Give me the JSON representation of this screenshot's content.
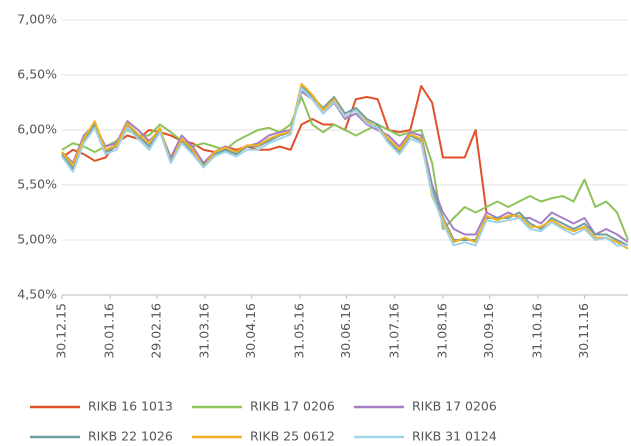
{
  "chart_data": {
    "type": "line",
    "x": [
      "30.12.15",
      "06.01.16",
      "13.01.16",
      "20.01.16",
      "27.01.16",
      "03.02.16",
      "10.02.16",
      "17.02.16",
      "24.02.16",
      "02.03.16",
      "09.03.16",
      "16.03.16",
      "23.03.16",
      "30.03.16",
      "06.04.16",
      "13.04.16",
      "20.04.16",
      "27.04.16",
      "04.05.16",
      "11.05.16",
      "18.05.16",
      "25.05.16",
      "01.06.16",
      "08.06.16",
      "15.06.16",
      "22.06.16",
      "29.06.16",
      "06.07.16",
      "13.07.16",
      "20.07.16",
      "27.07.16",
      "03.08.16",
      "10.08.16",
      "17.08.16",
      "24.08.16",
      "31.08.16",
      "07.09.16",
      "14.09.16",
      "21.09.16",
      "28.09.16",
      "05.10.16",
      "12.10.16",
      "19.10.16",
      "26.10.16",
      "02.11.16",
      "09.11.16",
      "16.11.16",
      "23.11.16",
      "30.11.16",
      "07.12.16",
      "14.12.16",
      "21.12.16",
      "28.12.16"
    ],
    "xlim": [
      "30.12.15",
      "28.12.16"
    ],
    "xticks": [
      "30.12.15",
      "30.01.16",
      "29.02.16",
      "31.03.16",
      "30.04.16",
      "31.05.16",
      "30.06.16",
      "31.07.16",
      "31.08.16",
      "30.09.16",
      "31.10.16",
      "30.11.16"
    ],
    "ylim": [
      4.5,
      7
    ],
    "yticks": [
      {
        "value": 4.5,
        "label": "4,50%"
      },
      {
        "value": 5,
        "label": "5,00%"
      },
      {
        "value": 5.5,
        "label": "5,50%"
      },
      {
        "value": 6,
        "label": "6,00%"
      },
      {
        "value": 6.5,
        "label": "6,50%"
      },
      {
        "value": 7,
        "label": "7,00%"
      }
    ],
    "grid": true,
    "series": [
      {
        "name": "RIKB 16 1013",
        "color": "#e0502a",
        "values": [
          5.75,
          5.82,
          5.78,
          5.72,
          5.75,
          5.88,
          5.95,
          5.92,
          6.0,
          5.98,
          5.95,
          5.9,
          5.88,
          5.82,
          5.8,
          5.85,
          5.82,
          5.85,
          5.82,
          5.82,
          5.85,
          5.82,
          6.05,
          6.1,
          6.05,
          6.05,
          6.0,
          6.28,
          6.3,
          6.28,
          6.0,
          5.98,
          6.0,
          6.4,
          6.25,
          5.75,
          5.75,
          5.75,
          6.0,
          5.25,
          null,
          null,
          null,
          null,
          null,
          null,
          null,
          null,
          null,
          null,
          null,
          null,
          null
        ]
      },
      {
        "name": "RIKB 17 0206",
        "color": "#8dc35a",
        "values": [
          5.82,
          5.88,
          5.85,
          5.8,
          5.85,
          5.9,
          6.0,
          5.95,
          5.95,
          6.05,
          5.98,
          5.9,
          5.85,
          5.88,
          5.85,
          5.82,
          5.9,
          5.95,
          6.0,
          6.02,
          5.98,
          6.05,
          6.3,
          6.05,
          5.98,
          6.05,
          6.0,
          5.95,
          6.0,
          6.05,
          6.0,
          5.95,
          5.98,
          6.0,
          5.7,
          5.1,
          5.2,
          5.3,
          5.25,
          5.3,
          5.35,
          5.3,
          5.35,
          5.4,
          5.35,
          5.38,
          5.4,
          5.35,
          5.55,
          5.3,
          5.35,
          5.25,
          5.0
        ]
      },
      {
        "name": "RIKB 17 0206",
        "color": "#a77fc6",
        "values": [
          5.8,
          5.7,
          5.95,
          6.05,
          5.85,
          5.88,
          6.08,
          6.0,
          5.9,
          6.0,
          5.75,
          5.95,
          5.85,
          5.7,
          5.8,
          5.85,
          5.8,
          5.85,
          5.88,
          5.95,
          5.98,
          6.0,
          6.35,
          6.28,
          6.15,
          6.25,
          6.1,
          6.15,
          6.05,
          6.0,
          5.95,
          5.85,
          5.98,
          5.95,
          5.5,
          5.25,
          5.1,
          5.05,
          5.05,
          5.25,
          5.2,
          5.25,
          5.2,
          5.2,
          5.15,
          5.25,
          5.2,
          5.15,
          5.2,
          5.05,
          5.1,
          5.05,
          4.98
        ]
      },
      {
        "name": "RIKB 22 1026",
        "color": "#6f9fa3",
        "values": [
          5.78,
          5.65,
          5.9,
          6.05,
          5.8,
          5.85,
          6.05,
          5.95,
          5.85,
          6.0,
          5.72,
          5.9,
          5.8,
          5.68,
          5.78,
          5.82,
          5.78,
          5.85,
          5.85,
          5.9,
          5.95,
          5.98,
          6.4,
          6.3,
          6.2,
          6.3,
          6.15,
          6.2,
          6.1,
          6.05,
          5.9,
          5.8,
          5.95,
          5.9,
          5.45,
          5.2,
          5.0,
          5.0,
          5.0,
          5.2,
          5.2,
          5.2,
          5.25,
          5.15,
          5.1,
          5.2,
          5.15,
          5.1,
          5.15,
          5.05,
          5.05,
          5.0,
          4.95
        ]
      },
      {
        "name": "RIKB 25 0612",
        "color": "#f0b020",
        "values": [
          5.8,
          5.68,
          5.92,
          6.08,
          5.82,
          5.86,
          6.06,
          5.96,
          5.88,
          6.02,
          5.7,
          5.92,
          5.82,
          5.66,
          5.8,
          5.84,
          5.8,
          5.86,
          5.86,
          5.92,
          5.96,
          5.98,
          6.42,
          6.32,
          6.18,
          6.28,
          6.12,
          6.18,
          6.08,
          6.02,
          5.92,
          5.82,
          5.96,
          5.92,
          5.4,
          5.18,
          4.98,
          5.02,
          4.98,
          5.22,
          5.18,
          5.22,
          5.22,
          5.12,
          5.12,
          5.18,
          5.12,
          5.08,
          5.12,
          5.02,
          5.02,
          4.98,
          4.92
        ]
      },
      {
        "name": "RIKB 31 0124",
        "color": "#9fd3e8",
        "values": [
          5.76,
          5.62,
          5.88,
          6.02,
          5.78,
          5.82,
          6.02,
          5.92,
          5.82,
          5.98,
          5.7,
          5.88,
          5.78,
          5.66,
          5.76,
          5.8,
          5.76,
          5.82,
          5.82,
          5.88,
          5.92,
          5.96,
          6.38,
          6.28,
          6.15,
          6.26,
          6.12,
          6.18,
          6.06,
          6.02,
          5.88,
          5.78,
          5.92,
          5.88,
          5.42,
          5.15,
          4.95,
          4.98,
          4.95,
          5.18,
          5.16,
          5.18,
          5.2,
          5.1,
          5.08,
          5.16,
          5.1,
          5.05,
          5.1,
          5.0,
          5.02,
          4.95,
          4.95
        ]
      }
    ]
  }
}
